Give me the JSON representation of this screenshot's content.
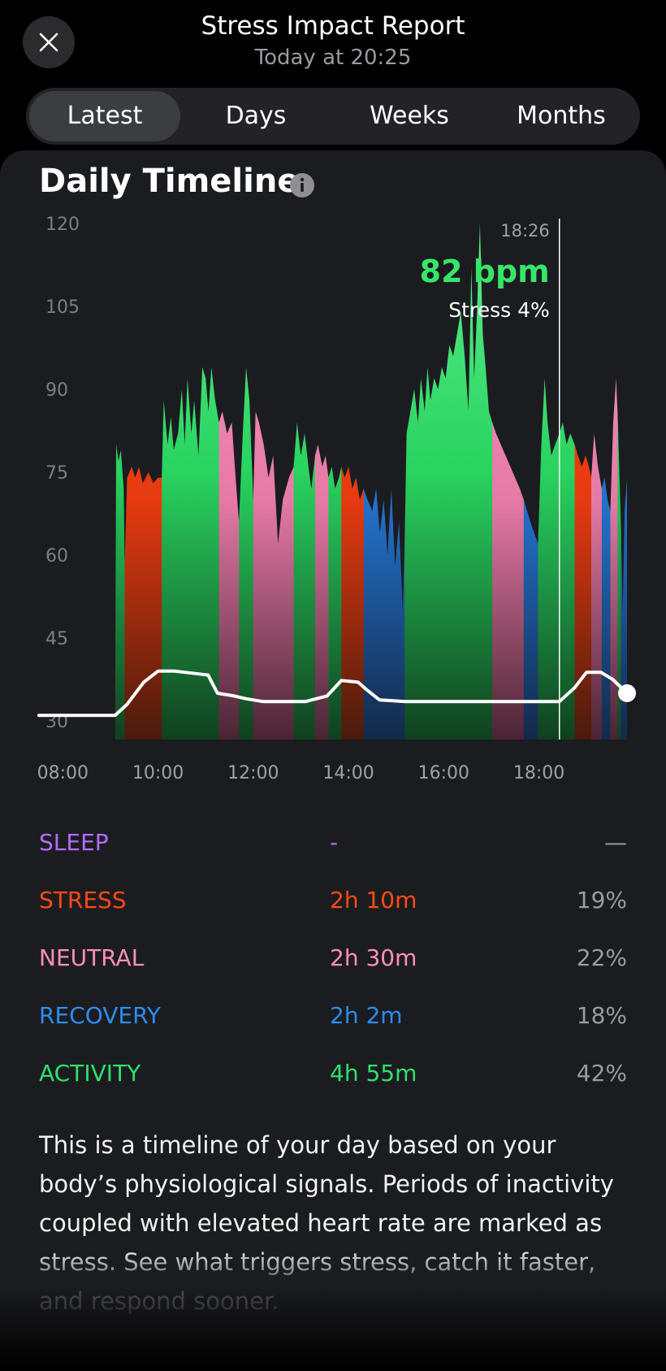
{
  "header": {
    "title": "Stress Impact Report",
    "subtitle": "Today at 20:25"
  },
  "tabs": [
    {
      "label": "Latest",
      "active": true
    },
    {
      "label": "Days",
      "active": false
    },
    {
      "label": "Weeks",
      "active": false
    },
    {
      "label": "Months",
      "active": false
    }
  ],
  "section_title": "Daily Timeline",
  "colors": {
    "sleep": "#b36cff",
    "stress": "#ff4a14",
    "neutral": "#ff8fbd",
    "recovery": "#2d8cf0",
    "activity": "#2fe06a",
    "stress_line": "#ffffff"
  },
  "chart_data": {
    "type": "area",
    "title": "",
    "x_unit": "hour of day",
    "x_range": [
      "07:30",
      "19:50"
    ],
    "xlim_hours": [
      7.5,
      19.85
    ],
    "ylim": [
      30,
      120
    ],
    "yticks": [
      120,
      105,
      90,
      75,
      60,
      45,
      30
    ],
    "y_tick_labels": [
      "120",
      "105",
      "90",
      "75",
      "60",
      "45",
      "30"
    ],
    "x_tick_labels": [
      "08:00",
      "10:00",
      "12:00",
      "14:00",
      "16:00",
      "18:00"
    ],
    "x_ticks_hours": [
      8,
      10,
      12,
      14,
      16,
      18
    ],
    "grid": false,
    "cursor": {
      "time": "18:26",
      "time_hours": 18.43,
      "value_text": "82 bpm",
      "stress_text": "Stress 4%"
    },
    "segments": [
      {
        "zone": "activity",
        "start": 9.1,
        "end": 9.3
      },
      {
        "zone": "stress",
        "start": 9.3,
        "end": 10.08
      },
      {
        "zone": "activity",
        "start": 10.08,
        "end": 11.28
      },
      {
        "zone": "neutral",
        "start": 11.28,
        "end": 11.7
      },
      {
        "zone": "activity",
        "start": 11.7,
        "end": 12.0
      },
      {
        "zone": "neutral",
        "start": 12.0,
        "end": 12.85
      },
      {
        "zone": "activity",
        "start": 12.85,
        "end": 13.3
      },
      {
        "zone": "neutral",
        "start": 13.3,
        "end": 13.58
      },
      {
        "zone": "activity",
        "start": 13.58,
        "end": 13.85
      },
      {
        "zone": "stress",
        "start": 13.85,
        "end": 14.32
      },
      {
        "zone": "recovery",
        "start": 14.32,
        "end": 15.18
      },
      {
        "zone": "activity",
        "start": 15.18,
        "end": 17.02
      },
      {
        "zone": "neutral",
        "start": 17.02,
        "end": 17.68
      },
      {
        "zone": "recovery",
        "start": 17.68,
        "end": 17.98
      },
      {
        "zone": "activity",
        "start": 17.98,
        "end": 18.75
      },
      {
        "zone": "stress",
        "start": 18.75,
        "end": 19.1
      },
      {
        "zone": "neutral",
        "start": 19.1,
        "end": 19.32
      },
      {
        "zone": "recovery",
        "start": 19.32,
        "end": 19.5
      },
      {
        "zone": "neutral",
        "start": 19.5,
        "end": 19.65
      },
      {
        "zone": "activity",
        "start": 19.65,
        "end": 19.72
      },
      {
        "zone": "recovery",
        "start": 19.72,
        "end": 19.85
      }
    ],
    "heart_rate": [
      [
        9.1,
        30
      ],
      [
        9.12,
        80
      ],
      [
        9.17,
        77
      ],
      [
        9.22,
        79
      ],
      [
        9.28,
        72
      ],
      [
        9.3,
        58
      ],
      [
        9.35,
        74
      ],
      [
        9.45,
        76
      ],
      [
        9.52,
        74
      ],
      [
        9.6,
        76
      ],
      [
        9.68,
        73
      ],
      [
        9.8,
        75
      ],
      [
        9.9,
        73
      ],
      [
        10.0,
        74
      ],
      [
        10.08,
        74
      ],
      [
        10.12,
        88
      ],
      [
        10.2,
        80
      ],
      [
        10.27,
        85
      ],
      [
        10.33,
        79
      ],
      [
        10.42,
        82
      ],
      [
        10.5,
        90
      ],
      [
        10.56,
        80
      ],
      [
        10.62,
        92
      ],
      [
        10.7,
        82
      ],
      [
        10.76,
        88
      ],
      [
        10.85,
        78
      ],
      [
        10.93,
        94
      ],
      [
        11.0,
        92
      ],
      [
        11.06,
        86
      ],
      [
        11.12,
        94
      ],
      [
        11.2,
        88
      ],
      [
        11.28,
        84
      ],
      [
        11.35,
        86
      ],
      [
        11.45,
        82
      ],
      [
        11.55,
        84
      ],
      [
        11.63,
        74
      ],
      [
        11.7,
        66
      ],
      [
        11.78,
        82
      ],
      [
        11.85,
        94
      ],
      [
        11.92,
        88
      ],
      [
        12.0,
        70
      ],
      [
        12.05,
        86
      ],
      [
        12.12,
        84
      ],
      [
        12.22,
        80
      ],
      [
        12.32,
        74
      ],
      [
        12.42,
        78
      ],
      [
        12.52,
        62
      ],
      [
        12.62,
        70
      ],
      [
        12.75,
        74
      ],
      [
        12.85,
        76
      ],
      [
        12.92,
        84
      ],
      [
        13.0,
        78
      ],
      [
        13.08,
        82
      ],
      [
        13.16,
        76
      ],
      [
        13.22,
        72
      ],
      [
        13.3,
        78
      ],
      [
        13.36,
        80
      ],
      [
        13.45,
        76
      ],
      [
        13.52,
        78
      ],
      [
        13.58,
        74
      ],
      [
        13.65,
        76
      ],
      [
        13.72,
        72
      ],
      [
        13.8,
        74
      ],
      [
        13.85,
        76
      ],
      [
        13.92,
        74
      ],
      [
        14.0,
        76
      ],
      [
        14.08,
        72
      ],
      [
        14.16,
        74
      ],
      [
        14.24,
        70
      ],
      [
        14.32,
        72
      ],
      [
        14.4,
        70
      ],
      [
        14.5,
        68
      ],
      [
        14.58,
        72
      ],
      [
        14.66,
        64
      ],
      [
        14.74,
        70
      ],
      [
        14.82,
        60
      ],
      [
        14.9,
        72
      ],
      [
        14.98,
        58
      ],
      [
        15.06,
        66
      ],
      [
        15.14,
        50
      ],
      [
        15.18,
        62
      ],
      [
        15.22,
        82
      ],
      [
        15.3,
        86
      ],
      [
        15.38,
        90
      ],
      [
        15.46,
        84
      ],
      [
        15.52,
        92
      ],
      [
        15.6,
        86
      ],
      [
        15.66,
        94
      ],
      [
        15.72,
        88
      ],
      [
        15.8,
        92
      ],
      [
        15.88,
        90
      ],
      [
        15.96,
        94
      ],
      [
        16.04,
        92
      ],
      [
        16.12,
        98
      ],
      [
        16.2,
        96
      ],
      [
        16.28,
        100
      ],
      [
        16.36,
        104
      ],
      [
        16.44,
        96
      ],
      [
        16.52,
        86
      ],
      [
        16.58,
        112
      ],
      [
        16.64,
        92
      ],
      [
        16.7,
        104
      ],
      [
        16.76,
        120
      ],
      [
        16.82,
        100
      ],
      [
        16.88,
        94
      ],
      [
        16.95,
        86
      ],
      [
        17.02,
        84
      ],
      [
        17.1,
        82
      ],
      [
        17.2,
        80
      ],
      [
        17.3,
        78
      ],
      [
        17.4,
        76
      ],
      [
        17.5,
        74
      ],
      [
        17.6,
        72
      ],
      [
        17.68,
        70
      ],
      [
        17.75,
        68
      ],
      [
        17.82,
        66
      ],
      [
        17.9,
        64
      ],
      [
        17.98,
        62
      ],
      [
        18.05,
        80
      ],
      [
        18.12,
        92
      ],
      [
        18.18,
        84
      ],
      [
        18.26,
        78
      ],
      [
        18.34,
        80
      ],
      [
        18.43,
        82
      ],
      [
        18.5,
        84
      ],
      [
        18.58,
        80
      ],
      [
        18.66,
        82
      ],
      [
        18.75,
        80
      ],
      [
        18.82,
        78
      ],
      [
        18.9,
        76
      ],
      [
        18.98,
        78
      ],
      [
        19.05,
        76
      ],
      [
        19.1,
        74
      ],
      [
        19.16,
        82
      ],
      [
        19.24,
        76
      ],
      [
        19.32,
        72
      ],
      [
        19.38,
        74
      ],
      [
        19.44,
        70
      ],
      [
        19.5,
        68
      ],
      [
        19.56,
        84
      ],
      [
        19.62,
        92
      ],
      [
        19.65,
        86
      ],
      [
        19.7,
        72
      ],
      [
        19.72,
        66
      ],
      [
        19.76,
        50
      ],
      [
        19.8,
        68
      ],
      [
        19.85,
        74
      ]
    ],
    "stress_level": [
      [
        7.5,
        31
      ],
      [
        9.1,
        31
      ],
      [
        9.35,
        33
      ],
      [
        9.7,
        37
      ],
      [
        10.0,
        39
      ],
      [
        10.35,
        39
      ],
      [
        10.85,
        38.5
      ],
      [
        11.05,
        38.3
      ],
      [
        11.25,
        35
      ],
      [
        11.6,
        34.5
      ],
      [
        11.85,
        34
      ],
      [
        12.2,
        33.5
      ],
      [
        13.1,
        33.5
      ],
      [
        13.55,
        34.5
      ],
      [
        13.85,
        37.3
      ],
      [
        14.2,
        37
      ],
      [
        14.4,
        35.5
      ],
      [
        14.65,
        33.8
      ],
      [
        15.2,
        33.5
      ],
      [
        17.0,
        33.5
      ],
      [
        18.43,
        33.5
      ],
      [
        18.75,
        36
      ],
      [
        19.0,
        38.8
      ],
      [
        19.3,
        38.8
      ],
      [
        19.55,
        37.5
      ],
      [
        19.85,
        35
      ]
    ]
  },
  "stats": [
    {
      "name": "SLEEP",
      "duration": "-",
      "percent": "—",
      "zone": "sleep"
    },
    {
      "name": "STRESS",
      "duration": "2h 10m",
      "percent": "19%",
      "zone": "stress"
    },
    {
      "name": "NEUTRAL",
      "duration": "2h 30m",
      "percent": "22%",
      "zone": "neutral"
    },
    {
      "name": "RECOVERY",
      "duration": "2h 2m",
      "percent": "18%",
      "zone": "recovery"
    },
    {
      "name": "ACTIVITY",
      "duration": "4h 55m",
      "percent": "42%",
      "zone": "activity"
    }
  ],
  "description": "This is a timeline of your day based on your body’s physiological signals. Periods of inactivity coupled with elevated heart rate are marked as stress. See what triggers stress, catch it faster, and respond sooner."
}
